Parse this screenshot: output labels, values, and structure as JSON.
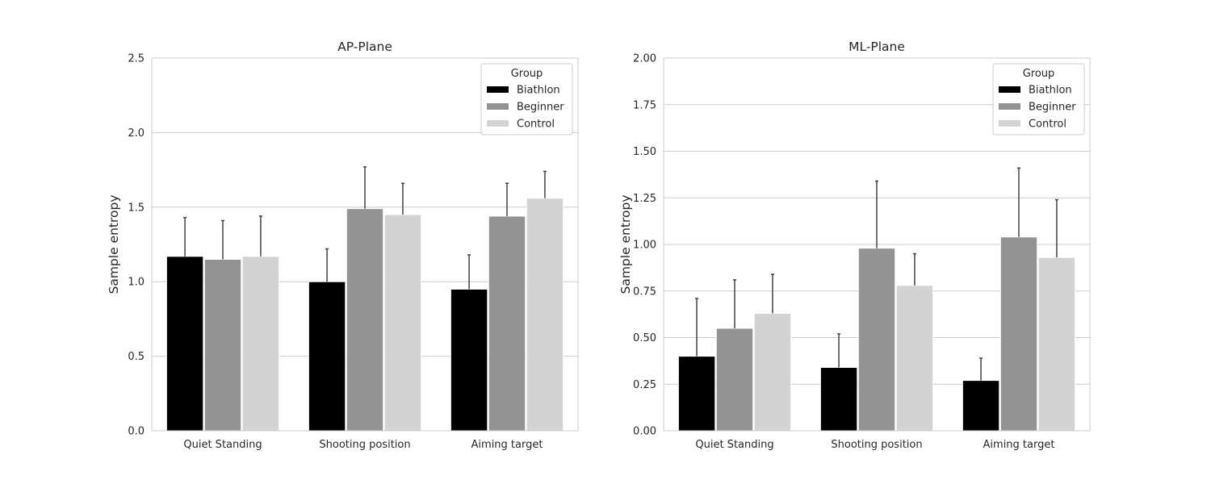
{
  "chart_data": [
    {
      "type": "bar",
      "title": "AP-Plane",
      "xlabel": "",
      "ylabel": "Sample entropy",
      "categories": [
        "Quiet Standing",
        "Shooting position",
        "Aiming target"
      ],
      "ylim": [
        0,
        2.5
      ],
      "yticks": [
        "0.0",
        "0.5",
        "1.0",
        "1.5",
        "2.0",
        "2.5"
      ],
      "grid": true,
      "legend": {
        "title": "Group",
        "position": "top-right"
      },
      "series": [
        {
          "name": "Biathlon",
          "color": "#000000",
          "values": [
            1.17,
            1.0,
            0.95
          ],
          "error": [
            0.26,
            0.22,
            0.23
          ]
        },
        {
          "name": "Beginner",
          "color": "#939393",
          "values": [
            1.15,
            1.49,
            1.44
          ],
          "error": [
            0.26,
            0.28,
            0.22
          ]
        },
        {
          "name": "Control",
          "color": "#d3d3d3",
          "values": [
            1.17,
            1.45,
            1.56
          ],
          "error": [
            0.27,
            0.21,
            0.18
          ]
        }
      ]
    },
    {
      "type": "bar",
      "title": "ML-Plane",
      "xlabel": "",
      "ylabel": "Sample entropy",
      "categories": [
        "Quiet Standing",
        "Shooting position",
        "Aiming target"
      ],
      "ylim": [
        0,
        2.0
      ],
      "yticks": [
        "0.00",
        "0.25",
        "0.50",
        "0.75",
        "1.00",
        "1.25",
        "1.50",
        "1.75",
        "2.00"
      ],
      "grid": true,
      "legend": {
        "title": "Group",
        "position": "top-right"
      },
      "series": [
        {
          "name": "Biathlon",
          "color": "#000000",
          "values": [
            0.4,
            0.34,
            0.27
          ],
          "error": [
            0.31,
            0.18,
            0.12
          ]
        },
        {
          "name": "Beginner",
          "color": "#939393",
          "values": [
            0.55,
            0.98,
            1.04
          ],
          "error": [
            0.26,
            0.36,
            0.37
          ]
        },
        {
          "name": "Control",
          "color": "#d3d3d3",
          "values": [
            0.63,
            0.78,
            0.93
          ],
          "error": [
            0.21,
            0.17,
            0.31
          ]
        }
      ]
    }
  ]
}
